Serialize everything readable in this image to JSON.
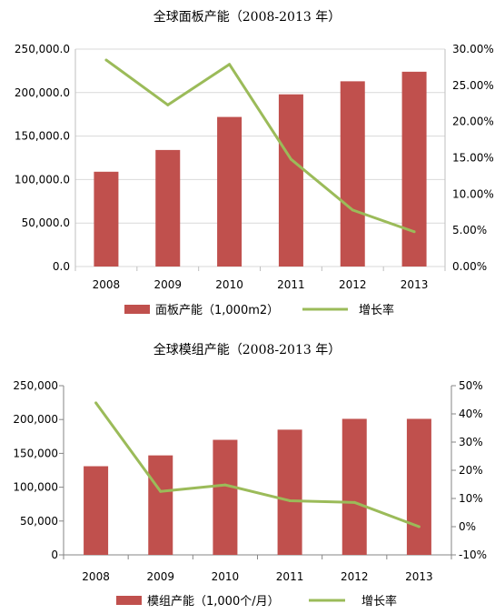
{
  "chart_data": [
    {
      "type": "bar",
      "title": "全球面板产能（2008-2013 年）",
      "categories": [
        "2008",
        "2009",
        "2010",
        "2011",
        "2012",
        "2013"
      ],
      "series": [
        {
          "name": "面板产能（1,000m2）",
          "type": "bar",
          "axis": "left",
          "values": [
            109000,
            134000,
            172000,
            198000,
            213000,
            224000
          ]
        },
        {
          "name": "增长率",
          "type": "line",
          "axis": "right",
          "values": [
            28.5,
            22.3,
            27.9,
            14.8,
            7.8,
            4.8
          ]
        }
      ],
      "y_left": {
        "min": 0,
        "max": 250000,
        "step": 50000,
        "tick_labels": [
          "0.0",
          "50,000.0",
          "100,000.0",
          "150,000.0",
          "200,000.0",
          "250,000.0"
        ]
      },
      "y_right": {
        "min": 0,
        "max": 30,
        "step": 5,
        "tick_labels": [
          "0.00%",
          "5.00%",
          "10.00%",
          "15.00%",
          "20.00%",
          "25.00%",
          "30.00%"
        ]
      },
      "legend_position": "bottom",
      "grid": true,
      "colors": {
        "bar": "#c0504d",
        "line": "#9bbb59",
        "grid": "#d9d9d9"
      }
    },
    {
      "type": "bar",
      "title": "全球模组产能（2008-2013 年）",
      "categories": [
        "2008",
        "2009",
        "2010",
        "2011",
        "2012",
        "2013"
      ],
      "series": [
        {
          "name": "模组产能（1,000个/月）",
          "type": "bar",
          "axis": "left",
          "values": [
            131000,
            147000,
            170000,
            185000,
            201000,
            201000
          ]
        },
        {
          "name": "增长率",
          "type": "line",
          "axis": "right",
          "values": [
            43.9,
            12.5,
            14.8,
            9.2,
            8.6,
            0.0
          ]
        }
      ],
      "y_left": {
        "min": 0,
        "max": 250000,
        "step": 50000,
        "tick_labels": [
          "0",
          "50,000",
          "100,000",
          "150,000",
          "200,000",
          "250,000"
        ]
      },
      "y_right": {
        "min": -10,
        "max": 50,
        "step": 10,
        "tick_labels": [
          "-10%",
          "0%",
          "10%",
          "20%",
          "30%",
          "40%",
          "50%"
        ]
      },
      "legend_position": "bottom",
      "grid": false,
      "colors": {
        "bar": "#c0504d",
        "line": "#9bbb59",
        "axis": "#868686"
      }
    }
  ]
}
